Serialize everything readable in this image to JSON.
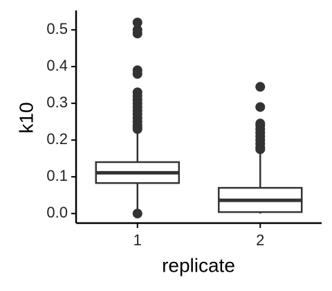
{
  "chart_data": {
    "type": "box",
    "xlabel": "replicate",
    "ylabel": "k10",
    "categories": [
      "1",
      "2"
    ],
    "boxes": [
      {
        "whisker_low": 0.005,
        "q1": 0.083,
        "median": 0.111,
        "q3": 0.14,
        "whisker_high": 0.226,
        "outliers": [
          0.0,
          0.23,
          0.235,
          0.24,
          0.25,
          0.26,
          0.27,
          0.28,
          0.29,
          0.3,
          0.31,
          0.32,
          0.33,
          0.38,
          0.39,
          0.49,
          0.5,
          0.52
        ]
      },
      {
        "whisker_low": 0.0,
        "q1": 0.004,
        "median": 0.036,
        "q3": 0.07,
        "whisker_high": 0.169,
        "outliers": [
          0.175,
          0.18,
          0.19,
          0.2,
          0.21,
          0.22,
          0.23,
          0.24,
          0.245,
          0.29,
          0.345
        ]
      }
    ],
    "color": "#333333",
    "box_fill": "#ffffff",
    "ylim": [
      -0.026,
      0.553
    ],
    "yticks": [
      {
        "value": 0,
        "label": "0.0"
      },
      0.1,
      0.2,
      0.3,
      0.4,
      0.5
    ]
  }
}
